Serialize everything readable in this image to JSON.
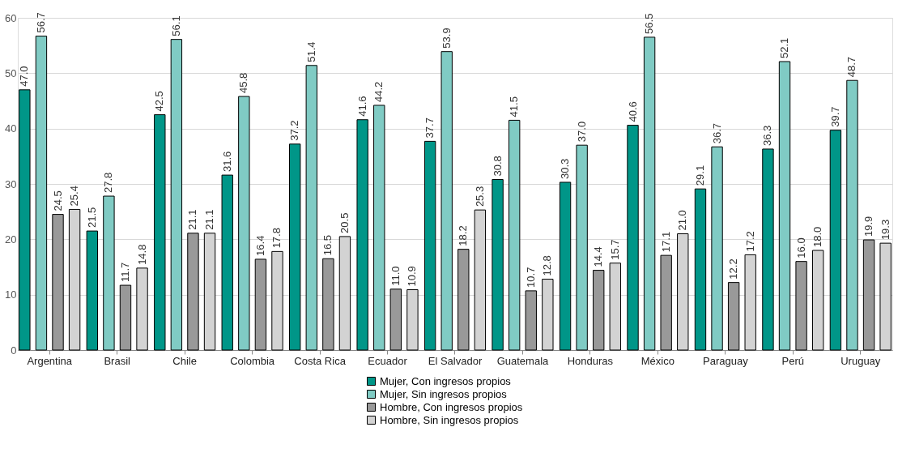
{
  "chart_data": {
    "type": "bar",
    "categories": [
      "Argentina",
      "Brasil",
      "Chile",
      "Colombia",
      "Costa Rica",
      "Ecuador",
      "El Salvador",
      "Guatemala",
      "Honduras",
      "México",
      "Paraguay",
      "Perú",
      "Uruguay"
    ],
    "series": [
      {
        "name": "Mujer, Con ingresos propios",
        "color": "#009688",
        "values": [
          47.0,
          21.5,
          42.5,
          31.6,
          37.2,
          41.6,
          37.7,
          30.8,
          30.3,
          40.6,
          29.1,
          36.3,
          39.7
        ],
        "value_labels": [
          "47.0",
          "21.5",
          "42.5",
          "31.6",
          "37.2",
          "41.6",
          "37.7",
          "30.8",
          "30.3",
          "40.6",
          "29.1",
          "36.3",
          "39.7"
        ]
      },
      {
        "name": "Mujer, Sin ingresos propios",
        "color": "#80cbc4",
        "values": [
          56.7,
          27.8,
          56.1,
          45.8,
          51.4,
          44.2,
          53.9,
          41.5,
          37.0,
          56.5,
          36.7,
          52.1,
          48.7
        ],
        "value_labels": [
          "56.7",
          "27.8",
          "56.1",
          "45.8",
          "51.4",
          "44.2",
          "53.9",
          "41.5",
          "37.0",
          "56.5",
          "36.7",
          "52.1",
          "48.7"
        ]
      },
      {
        "name": "Hombre, Con ingresos propios",
        "color": "#999999",
        "values": [
          24.5,
          11.7,
          21.1,
          16.4,
          16.5,
          11.0,
          18.2,
          10.7,
          14.4,
          17.1,
          12.2,
          16.0,
          19.9
        ],
        "value_labels": [
          "24.5",
          "11.7",
          "21.1",
          "16.4",
          "16.5",
          "11.0",
          "18.2",
          "10.7",
          "14.4",
          "17.1",
          "12.2",
          "16.0",
          "19.9"
        ]
      },
      {
        "name": "Hombre, Sin ingresos propios",
        "color": "#d3d3d3",
        "values": [
          25.4,
          14.8,
          21.1,
          17.8,
          20.5,
          10.9,
          25.3,
          12.8,
          15.7,
          21.0,
          17.2,
          18.0,
          19.3
        ],
        "value_labels": [
          "25.4",
          "14.8",
          "21.1",
          "17.8",
          "20.5",
          "10.9",
          "25.3",
          "12.8",
          "15.7",
          "21.0",
          "17.2",
          "18.0",
          "19.3"
        ]
      }
    ],
    "ylim": [
      0,
      60
    ],
    "yticks": [
      0,
      10,
      20,
      30,
      40,
      50,
      60
    ],
    "grid": "y",
    "legend": "bottom"
  }
}
